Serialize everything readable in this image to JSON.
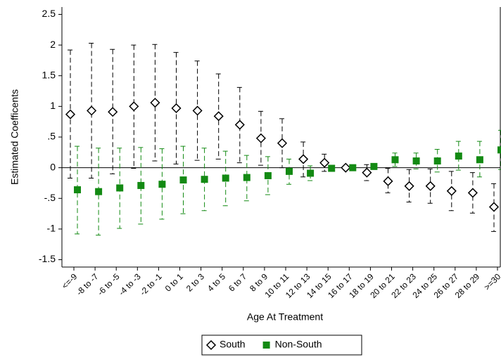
{
  "chart_data": {
    "type": "coefplot",
    "x_label": "Age At Treatment",
    "y_label": "Estimated Coefficents",
    "categories": [
      "<=-9",
      "-8 to -7",
      "-6 to -5",
      "-4 to -3",
      "-2 to -1",
      "0 to 1",
      "2 to 3",
      "4 to 5",
      "6 to 7",
      "8 to 9",
      "10 to 11",
      "12 to 13",
      "14 to 15",
      "16 to 17",
      "18 to 19",
      "20 to 21",
      "22 to 23",
      "24 to 25",
      "26 to 27",
      "28 to 29",
      ">=30"
    ],
    "ylim": [
      -1.62,
      2.62
    ],
    "yticks": [
      -1.5,
      -1,
      {
        "value": -0.5,
        "label": "-.5"
      },
      0,
      {
        "value": 0.5,
        "label": ".5"
      },
      1,
      1.5,
      2,
      2.5
    ],
    "series": [
      {
        "name": "South",
        "color": "#000000",
        "marker": "diamond",
        "values": [
          0.87,
          0.93,
          0.91,
          1.0,
          1.06,
          0.97,
          0.93,
          0.84,
          0.7,
          0.48,
          0.4,
          0.14,
          0.08,
          0.0,
          -0.08,
          -0.22,
          -0.3,
          -0.3,
          -0.38,
          -0.41,
          -0.64
        ],
        "ci_high": [
          1.92,
          2.03,
          1.93,
          2.0,
          2.01,
          1.88,
          1.74,
          1.53,
          1.31,
          0.92,
          0.8,
          0.42,
          0.22,
          0.02,
          0.05,
          -0.01,
          -0.03,
          -0.02,
          -0.06,
          -0.08,
          -0.26
        ],
        "ci_low": [
          -0.17,
          -0.17,
          -0.1,
          -0.01,
          0.11,
          0.06,
          0.12,
          0.14,
          0.08,
          0.04,
          0.0,
          -0.15,
          -0.06,
          -0.02,
          -0.21,
          -0.41,
          -0.56,
          -0.58,
          -0.7,
          -0.74,
          -1.04
        ]
      },
      {
        "name": "Non-South",
        "color": "#138a13",
        "marker": "square",
        "values": [
          -0.36,
          -0.39,
          -0.33,
          -0.29,
          -0.27,
          -0.2,
          -0.19,
          -0.17,
          -0.16,
          -0.13,
          -0.06,
          -0.09,
          -0.01,
          0.0,
          0.02,
          0.13,
          0.11,
          0.11,
          0.19,
          0.13,
          0.29
        ],
        "ci_high": [
          0.35,
          0.32,
          0.32,
          0.33,
          0.31,
          0.35,
          0.32,
          0.27,
          0.2,
          0.18,
          0.14,
          0.03,
          0.04,
          0.02,
          0.05,
          0.24,
          0.24,
          0.3,
          0.43,
          0.43,
          0.61
        ],
        "ci_low": [
          -1.08,
          -1.1,
          -0.99,
          -0.92,
          -0.84,
          -0.75,
          -0.7,
          -0.62,
          -0.54,
          -0.44,
          -0.27,
          -0.21,
          -0.06,
          -0.02,
          -0.01,
          0.02,
          -0.02,
          -0.07,
          -0.04,
          -0.15,
          -0.03
        ]
      }
    ]
  }
}
